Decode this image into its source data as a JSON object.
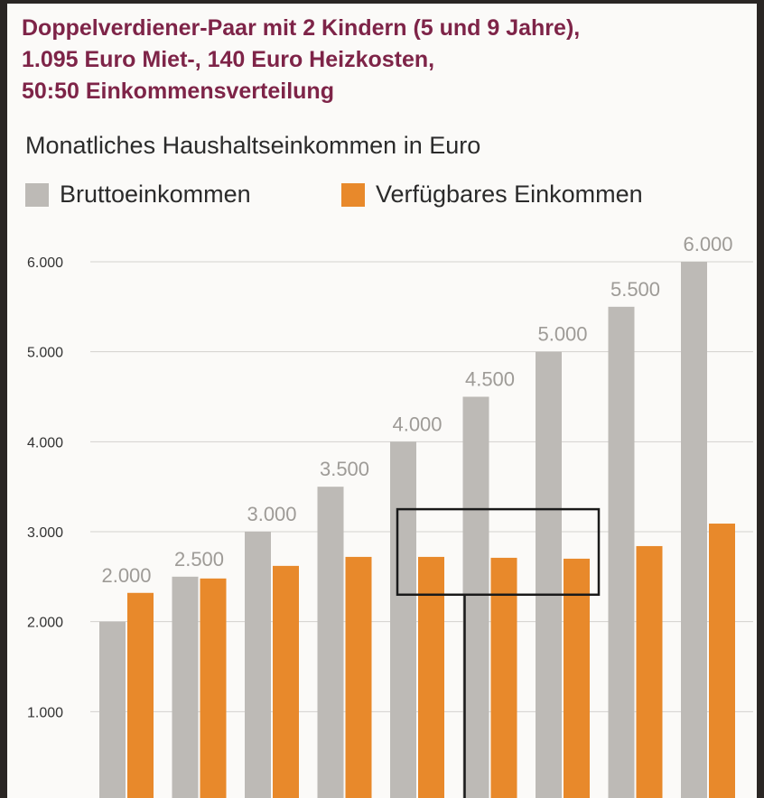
{
  "header": {
    "lines": [
      "Doppelverdiener-Paar mit 2 Kindern (5 und 9 Jahre),",
      "1.095 Euro Miet-, 140 Euro Heizkosten,",
      "50:50 Einkommensverteilung"
    ]
  },
  "subtitle": "Monatliches Haushaltseinkommen in Euro",
  "legend": [
    {
      "label": "Bruttoeinkommen",
      "color": "#bdbab6"
    },
    {
      "label": "Verfügbares Einkommen",
      "color": "#e8892b"
    }
  ],
  "chart_data": {
    "type": "bar",
    "title": "Monatliches Haushaltseinkommen in Euro",
    "xlabel": "",
    "ylabel": "",
    "categories": [
      "2.000",
      "2.500",
      "3.000",
      "3.500",
      "4.000",
      "4.500",
      "5.000",
      "5.500",
      "6.000"
    ],
    "series": [
      {
        "name": "Bruttoeinkommen",
        "color": "#bdbab6",
        "values": [
          2000,
          2500,
          3000,
          3500,
          4000,
          4500,
          5000,
          5500,
          6000
        ]
      },
      {
        "name": "Verfügbares Einkommen",
        "color": "#e8892b",
        "values": [
          2320,
          2480,
          2620,
          2720,
          2720,
          2710,
          2700,
          2840,
          3090
        ]
      }
    ],
    "data_labels": [
      "2.000",
      "2.500",
      "3.000",
      "3.500",
      "4.000",
      "4.500",
      "5.000",
      "5.500",
      "6.000"
    ],
    "yticks": [
      {
        "value": 1000,
        "label": "1.000"
      },
      {
        "value": 2000,
        "label": "2.000"
      },
      {
        "value": 3000,
        "label": "3.000"
      },
      {
        "value": 4000,
        "label": "4.000"
      },
      {
        "value": 5000,
        "label": "5.000"
      },
      {
        "value": 6000,
        "label": "6.000"
      }
    ],
    "ylim": [
      0,
      6000
    ],
    "grid": true,
    "annotation": {
      "type": "highlight-box",
      "from_category": "4.000",
      "to_category": "5.000",
      "ymin": 2300,
      "ymax": 3250
    }
  }
}
